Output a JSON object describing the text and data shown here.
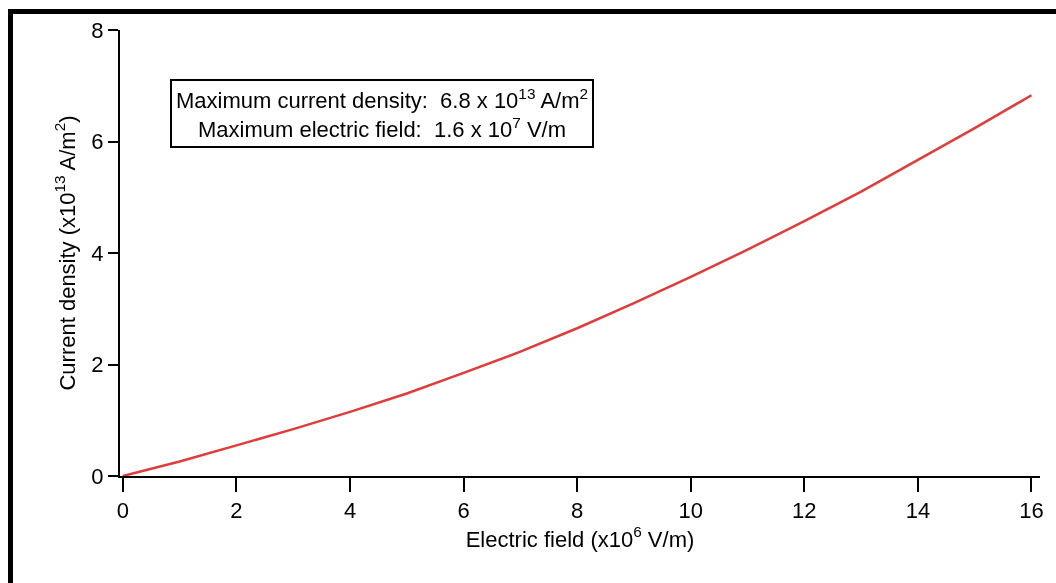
{
  "chart_data": {
    "type": "line",
    "xlabel": "Electric field (x10$^{6}$ V/m)",
    "ylabel": "Current density (x10$^{13}$ A/m$^{2}$)",
    "annotations": [
      "Maximum current density:  6.8 x 10$^{13}$ A/m$^{2}$",
      "Maximum electric field:  1.6 x 10$^{7}$ V/m"
    ],
    "x": [
      0,
      1,
      2,
      3,
      4,
      5,
      6,
      7,
      8,
      9,
      10,
      11,
      12,
      13,
      14,
      15,
      16
    ],
    "series": [
      {
        "color": "#e03c3c",
        "values": [
          0,
          0.26,
          0.55,
          0.84,
          1.15,
          1.48,
          1.85,
          2.23,
          2.65,
          3.1,
          3.57,
          4.06,
          4.57,
          5.1,
          5.67,
          6.24,
          6.83
        ]
      }
    ],
    "xlim": [
      -0.05,
      16.15
    ],
    "xticks": [
      0,
      2,
      4,
      6,
      8,
      10,
      12,
      14,
      16
    ],
    "ylim": [
      0,
      8
    ],
    "yticks": [
      0,
      2,
      4,
      6,
      8
    ],
    "grid": false,
    "legend": false,
    "marker": "none",
    "line_style": "solid"
  }
}
